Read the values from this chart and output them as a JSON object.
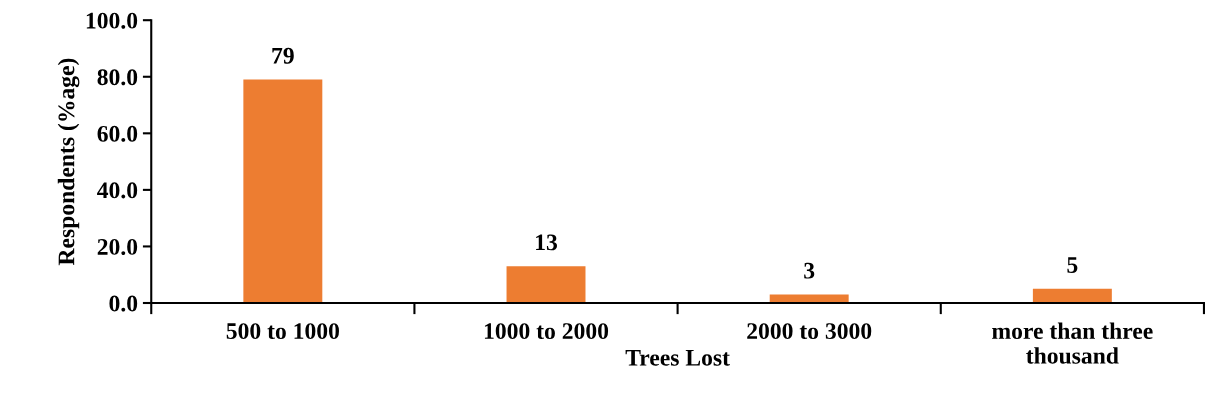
{
  "chart_data": {
    "type": "bar",
    "categories": [
      "500 to 1000",
      "1000 to 2000",
      "2000 to 3000",
      "more than three\nthousand"
    ],
    "values": [
      79,
      13,
      3,
      5
    ],
    "color": "#ed7d31",
    "xlabel": "Trees Lost",
    "ylabel": "Respondents (%age)",
    "ylim": [
      0,
      100
    ],
    "yticks": [
      {
        "value": 0,
        "label": "0.0"
      },
      {
        "value": 20,
        "label": "20.0"
      },
      {
        "value": 40,
        "label": "40.0"
      },
      {
        "value": 60,
        "label": "60.0"
      },
      {
        "value": 80,
        "label": "80.0"
      },
      {
        "value": 100,
        "label": "100.0"
      }
    ],
    "data_labels": true,
    "grid": false
  }
}
